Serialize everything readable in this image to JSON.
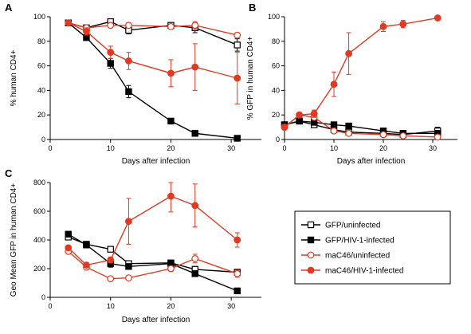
{
  "colors": {
    "black": "#000000",
    "red": "#e03a22"
  },
  "legend": {
    "items": [
      {
        "label": "GFP/uninfected",
        "color": "#000000",
        "marker": "square",
        "filled": false
      },
      {
        "label": "GFP/HIV-1-infected",
        "color": "#000000",
        "marker": "square",
        "filled": true
      },
      {
        "label": "maC46/uninfected",
        "color": "#e03a22",
        "marker": "circle",
        "filled": false
      },
      {
        "label": "maC46/HIV-1-infected",
        "color": "#e03a22",
        "marker": "circle",
        "filled": true
      }
    ]
  },
  "chart_data": [
    {
      "panel": "A",
      "type": "line",
      "xlabel": "Days after infection",
      "ylabel": "% human CD4+",
      "xlim": [
        0,
        35
      ],
      "ylim": [
        0,
        100
      ],
      "xticks": [
        0,
        10,
        20,
        30
      ],
      "yticks": [
        0,
        20,
        40,
        60,
        80,
        100
      ],
      "x": [
        3,
        6,
        10,
        13,
        20,
        24,
        31
      ],
      "series": [
        {
          "legend_index": 0,
          "values": [
            95,
            91,
            96,
            89,
            93,
            91,
            77
          ],
          "errors": [
            2,
            2,
            2,
            3,
            2,
            4,
            5
          ]
        },
        {
          "legend_index": 1,
          "values": [
            95,
            83,
            62,
            39,
            15,
            5,
            1
          ],
          "errors": [
            2,
            2,
            4,
            5,
            2,
            2,
            1
          ]
        },
        {
          "legend_index": 2,
          "values": [
            95,
            91,
            93,
            93,
            92,
            93,
            85
          ],
          "errors": [
            2,
            2,
            2,
            2,
            2,
            3,
            2
          ]
        },
        {
          "legend_index": 3,
          "values": [
            95,
            88,
            71,
            64,
            54,
            59,
            50
          ],
          "errors": [
            2,
            3,
            5,
            7,
            11,
            19,
            21
          ]
        }
      ]
    },
    {
      "panel": "B",
      "type": "line",
      "xlabel": "Days  after infection",
      "ylabel": "% GFP in human CD4+",
      "xlim": [
        0,
        35
      ],
      "ylim": [
        0,
        100
      ],
      "xticks": [
        0,
        10,
        20,
        30
      ],
      "yticks": [
        0,
        20,
        40,
        60,
        80,
        100
      ],
      "x": [
        0,
        3,
        6,
        10,
        13,
        20,
        24,
        31
      ],
      "series": [
        {
          "legend_index": 0,
          "values": [
            12,
            15,
            12,
            8,
            6,
            5,
            4,
            7
          ],
          "errors": [
            2,
            2,
            2,
            2,
            2,
            1,
            1,
            3
          ]
        },
        {
          "legend_index": 1,
          "values": [
            12,
            15,
            14,
            12,
            11,
            7,
            5,
            5
          ],
          "errors": [
            2,
            2,
            2,
            2,
            2,
            1,
            1,
            1
          ]
        },
        {
          "legend_index": 2,
          "values": [
            10,
            20,
            18,
            7,
            5,
            4,
            3,
            2
          ],
          "errors": [
            2,
            2,
            2,
            2,
            1,
            1,
            1,
            1
          ]
        },
        {
          "legend_index": 3,
          "values": [
            10,
            20,
            21,
            45,
            70,
            92,
            94,
            99
          ],
          "errors": [
            2,
            2,
            3,
            10,
            17,
            4,
            3,
            1
          ]
        }
      ]
    },
    {
      "panel": "C",
      "type": "line",
      "xlabel": "Days after infection",
      "ylabel": "Geo Mean GFP in human CD4+",
      "xlim": [
        0,
        35
      ],
      "ylim": [
        0,
        800
      ],
      "xticks": [
        0,
        10,
        20,
        30
      ],
      "yticks": [
        0,
        200,
        400,
        600,
        800
      ],
      "x": [
        3,
        6,
        10,
        13,
        20,
        24,
        31
      ],
      "series": [
        {
          "legend_index": 0,
          "values": [
            420,
            370,
            335,
            235,
            240,
            195,
            175
          ],
          "errors": [
            15,
            15,
            15,
            15,
            20,
            20,
            20
          ]
        },
        {
          "legend_index": 1,
          "values": [
            440,
            365,
            235,
            215,
            235,
            165,
            45
          ],
          "errors": [
            15,
            15,
            25,
            15,
            20,
            15,
            15
          ]
        },
        {
          "legend_index": 2,
          "values": [
            320,
            210,
            130,
            135,
            200,
            270,
            165
          ],
          "errors": [
            15,
            15,
            10,
            10,
            20,
            30,
            25
          ]
        },
        {
          "legend_index": 3,
          "values": [
            345,
            225,
            260,
            530,
            705,
            640,
            400
          ],
          "errors": [
            15,
            15,
            20,
            160,
            110,
            150,
            50
          ]
        }
      ]
    }
  ]
}
